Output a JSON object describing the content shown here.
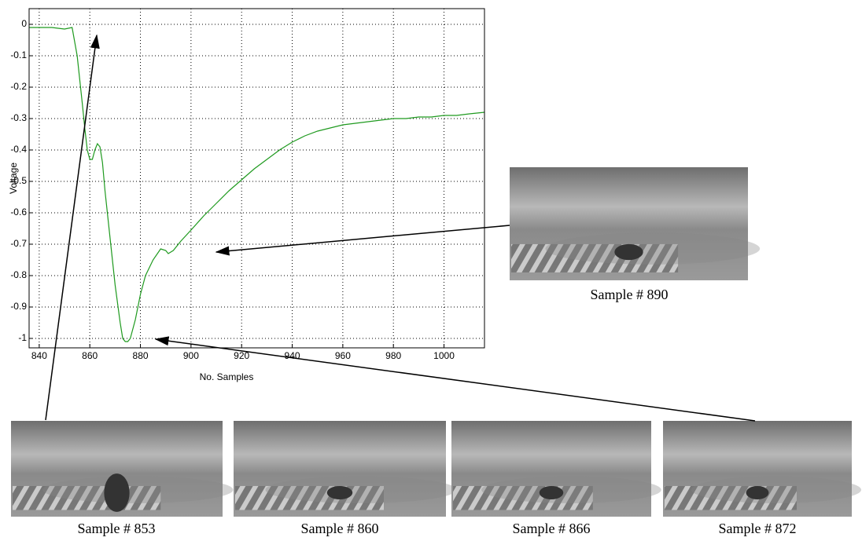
{
  "chart_data": {
    "type": "line",
    "xlabel": "No. Samples",
    "ylabel": "Voltage",
    "x": [
      836,
      840,
      845,
      850,
      853,
      855,
      857,
      858,
      859,
      860,
      861,
      862,
      863,
      864,
      865,
      866,
      868,
      870,
      872,
      873,
      874,
      875,
      876,
      878,
      880,
      882,
      885,
      888,
      890,
      891,
      893,
      896,
      900,
      905,
      910,
      915,
      920,
      925,
      930,
      935,
      940,
      945,
      950,
      955,
      960,
      965,
      970,
      975,
      980,
      985,
      990,
      995,
      1000,
      1005,
      1010,
      1016
    ],
    "series": [
      {
        "color": "#1f9a1f",
        "values": [
          -0.01,
          -0.01,
          -0.01,
          -0.015,
          -0.01,
          -0.1,
          -0.25,
          -0.33,
          -0.4,
          -0.43,
          -0.43,
          -0.4,
          -0.38,
          -0.39,
          -0.44,
          -0.53,
          -0.68,
          -0.83,
          -0.95,
          -1.0,
          -1.01,
          -1.01,
          -1.0,
          -0.94,
          -0.86,
          -0.8,
          -0.75,
          -0.715,
          -0.72,
          -0.73,
          -0.72,
          -0.69,
          -0.655,
          -0.61,
          -0.57,
          -0.53,
          -0.495,
          -0.46,
          -0.43,
          -0.4,
          -0.375,
          -0.355,
          -0.34,
          -0.33,
          -0.32,
          -0.315,
          -0.31,
          -0.305,
          -0.3,
          -0.3,
          -0.295,
          -0.295,
          -0.29,
          -0.29,
          -0.285,
          -0.28
        ]
      }
    ],
    "xlim": [
      836,
      1016
    ],
    "xticks": [
      840,
      860,
      880,
      900,
      920,
      940,
      960,
      980,
      1000
    ],
    "ylim": [
      -1.03,
      0.05
    ],
    "yticks": [
      0,
      -0.1,
      -0.2,
      -0.3,
      -0.4,
      -0.5,
      -0.6,
      -0.7,
      -0.8,
      -0.9,
      -1
    ],
    "grid": true
  },
  "photos": [
    {
      "caption": "Sample # 853"
    },
    {
      "caption": "Sample # 860"
    },
    {
      "caption": "Sample # 866"
    },
    {
      "caption": "Sample # 872"
    },
    {
      "caption": "Sample # 890"
    }
  ]
}
